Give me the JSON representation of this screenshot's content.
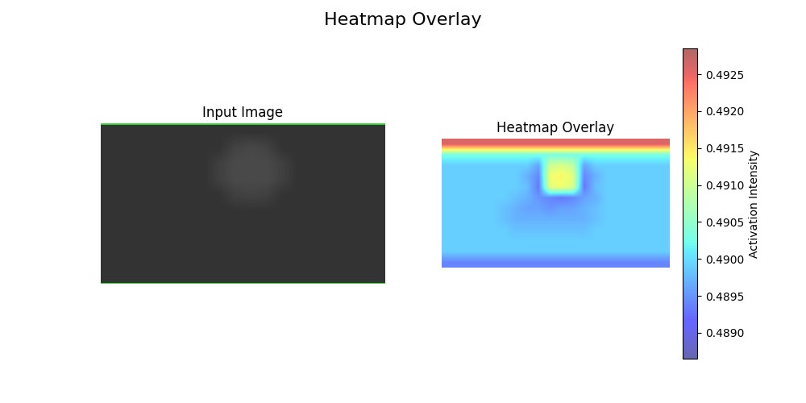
{
  "title": "Heatmap Overlay",
  "chart_data": [
    {
      "type": "image",
      "title": "Input Image",
      "tick_labels": false,
      "color_range": [
        0,
        1
      ],
      "cells": [
        [
          0.2,
          0.2,
          0.2,
          0.2,
          0.2,
          0.2,
          0.2,
          0.2,
          0.2,
          0.2,
          0.2,
          0.2,
          0.2,
          0.2,
          0.2,
          0.2,
          0.2,
          0.2
        ],
        [
          0.2,
          0.2,
          0.2,
          0.2,
          0.2,
          0.2,
          0.2,
          0.2,
          0.26,
          0.28,
          0.26,
          0.2,
          0.2,
          0.2,
          0.2,
          0.2,
          0.2,
          0.2
        ],
        [
          0.2,
          0.2,
          0.2,
          0.2,
          0.2,
          0.2,
          0.2,
          0.25,
          0.29,
          0.29,
          0.29,
          0.25,
          0.2,
          0.2,
          0.2,
          0.2,
          0.2,
          0.2
        ],
        [
          0.2,
          0.2,
          0.2,
          0.2,
          0.2,
          0.2,
          0.2,
          0.25,
          0.29,
          0.29,
          0.29,
          0.25,
          0.2,
          0.2,
          0.2,
          0.2,
          0.2,
          0.2
        ],
        [
          0.2,
          0.2,
          0.2,
          0.2,
          0.2,
          0.2,
          0.2,
          0.2,
          0.25,
          0.26,
          0.25,
          0.2,
          0.2,
          0.2,
          0.2,
          0.2,
          0.2,
          0.2
        ],
        [
          0.2,
          0.2,
          0.2,
          0.2,
          0.2,
          0.2,
          0.2,
          0.2,
          0.2,
          0.2,
          0.2,
          0.2,
          0.2,
          0.2,
          0.2,
          0.2,
          0.2,
          0.2
        ],
        [
          0.2,
          0.2,
          0.2,
          0.2,
          0.2,
          0.2,
          0.2,
          0.2,
          0.2,
          0.2,
          0.2,
          0.2,
          0.2,
          0.2,
          0.2,
          0.2,
          0.2,
          0.2
        ],
        [
          0.2,
          0.2,
          0.2,
          0.2,
          0.2,
          0.2,
          0.2,
          0.2,
          0.2,
          0.2,
          0.2,
          0.2,
          0.2,
          0.2,
          0.2,
          0.2,
          0.2,
          0.2
        ],
        [
          0.2,
          0.2,
          0.2,
          0.2,
          0.2,
          0.2,
          0.2,
          0.2,
          0.2,
          0.2,
          0.2,
          0.2,
          0.2,
          0.2,
          0.2,
          0.2,
          0.2,
          0.2
        ],
        [
          0.2,
          0.2,
          0.2,
          0.2,
          0.2,
          0.2,
          0.2,
          0.2,
          0.2,
          0.2,
          0.2,
          0.2,
          0.2,
          0.2,
          0.2,
          0.2,
          0.2,
          0.2
        ]
      ]
    },
    {
      "type": "heatmap",
      "title": "Heatmap Overlay",
      "tick_labels": false,
      "colorbar": {
        "label": "Activation Intensity",
        "range": [
          0.48865,
          0.49285
        ],
        "ticks": [
          {
            "value": 0.489,
            "label": "0.4890"
          },
          {
            "value": 0.4895,
            "label": "0.4895"
          },
          {
            "value": 0.49,
            "label": "0.4900"
          },
          {
            "value": 0.4905,
            "label": "0.4905"
          },
          {
            "value": 0.491,
            "label": "0.4910"
          },
          {
            "value": 0.4915,
            "label": "0.4915"
          },
          {
            "value": 0.492,
            "label": "0.4920"
          },
          {
            "value": 0.4925,
            "label": "0.4925"
          }
        ]
      },
      "cells": [
        [
          0.4926,
          0.4926,
          0.4926,
          0.4926,
          0.4926,
          0.4926,
          0.4926,
          0.4926,
          0.4926,
          0.4926,
          0.4926,
          0.4926,
          0.4926,
          0.4926,
          0.4926,
          0.4926,
          0.4926,
          0.4926,
          0.4926,
          0.4926
        ],
        [
          0.4903,
          0.4903,
          0.4903,
          0.4903,
          0.4903,
          0.4903,
          0.4903,
          0.4903,
          0.4903,
          0.4903,
          0.4903,
          0.4903,
          0.4903,
          0.4903,
          0.4903,
          0.4903,
          0.4903,
          0.4903,
          0.4903,
          0.4903
        ],
        [
          0.4899,
          0.4899,
          0.4899,
          0.4899,
          0.4899,
          0.4899,
          0.4899,
          0.4899,
          0.4896,
          0.491,
          0.4911,
          0.4909,
          0.4896,
          0.4899,
          0.4899,
          0.4899,
          0.4899,
          0.4899,
          0.4899,
          0.4899
        ],
        [
          0.4899,
          0.4899,
          0.4899,
          0.4899,
          0.4899,
          0.4899,
          0.4899,
          0.4897,
          0.4894,
          0.4913,
          0.4914,
          0.4912,
          0.4894,
          0.4897,
          0.4899,
          0.4899,
          0.4899,
          0.4899,
          0.4899,
          0.4899
        ],
        [
          0.4899,
          0.4899,
          0.4899,
          0.4899,
          0.4899,
          0.4899,
          0.4899,
          0.4898,
          0.4893,
          0.4912,
          0.4913,
          0.4911,
          0.4893,
          0.4898,
          0.4899,
          0.4899,
          0.4899,
          0.4899,
          0.4899,
          0.4899
        ],
        [
          0.4899,
          0.4899,
          0.4899,
          0.4899,
          0.4899,
          0.4899,
          0.4898,
          0.4897,
          0.4895,
          0.4894,
          0.4893,
          0.4894,
          0.4896,
          0.4897,
          0.4899,
          0.4899,
          0.4899,
          0.4899,
          0.4899,
          0.4899
        ],
        [
          0.4899,
          0.4899,
          0.4899,
          0.4899,
          0.4899,
          0.4898,
          0.4897,
          0.4896,
          0.4896,
          0.4895,
          0.4896,
          0.4896,
          0.4897,
          0.4898,
          0.4899,
          0.4899,
          0.4899,
          0.4899,
          0.4899,
          0.4899
        ],
        [
          0.4899,
          0.4899,
          0.4899,
          0.4899,
          0.4899,
          0.4898,
          0.4897,
          0.4897,
          0.4897,
          0.4897,
          0.4897,
          0.4897,
          0.4897,
          0.4898,
          0.4899,
          0.4899,
          0.4899,
          0.4899,
          0.4899,
          0.4899
        ],
        [
          0.4899,
          0.4899,
          0.4899,
          0.4899,
          0.4899,
          0.4899,
          0.4898,
          0.4898,
          0.4898,
          0.4898,
          0.4898,
          0.4898,
          0.4898,
          0.4899,
          0.4899,
          0.4899,
          0.4899,
          0.4899,
          0.4899,
          0.4899
        ],
        [
          0.4899,
          0.4899,
          0.4899,
          0.4899,
          0.4899,
          0.4899,
          0.4899,
          0.4899,
          0.4899,
          0.4899,
          0.4899,
          0.4899,
          0.4899,
          0.4899,
          0.4899,
          0.4899,
          0.4899,
          0.4899,
          0.4899,
          0.4899
        ],
        [
          0.4899,
          0.4899,
          0.4899,
          0.4899,
          0.4899,
          0.4899,
          0.4899,
          0.4899,
          0.4899,
          0.4899,
          0.4899,
          0.4899,
          0.4899,
          0.4899,
          0.4899,
          0.4899,
          0.4899,
          0.4899,
          0.4899,
          0.4899
        ],
        [
          0.4894,
          0.4894,
          0.4894,
          0.4894,
          0.4894,
          0.4894,
          0.4894,
          0.4894,
          0.4894,
          0.4894,
          0.4894,
          0.4894,
          0.4894,
          0.4894,
          0.4894,
          0.4894,
          0.4894,
          0.4894,
          0.4894,
          0.4894
        ]
      ]
    }
  ]
}
